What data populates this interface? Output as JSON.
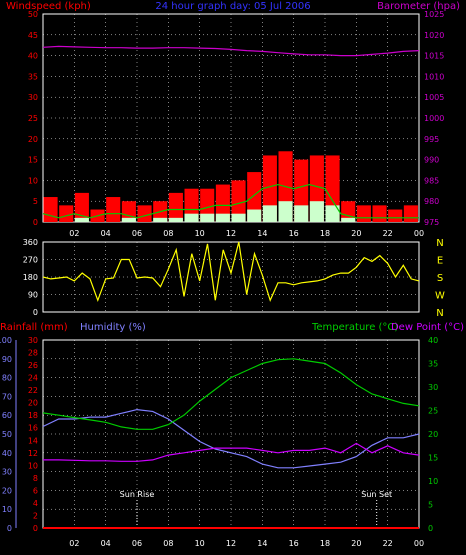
{
  "header": {
    "title": "24 hour graph day: 05 Jul 2006",
    "left_label": "Windspeed (kph)",
    "right_label": "Barometer (hpa)"
  },
  "colors": {
    "wind": "#ff0000",
    "gust_fill": "#ff0000",
    "wind_avg": "#00cc00",
    "wind_low": "#ccffcc",
    "barometer": "#cc00cc",
    "direction": "#ffff00",
    "temperature": "#00cc00",
    "dewpoint": "#cc00ff",
    "humidity": "#8080ff",
    "rainfall": "#ff0000",
    "title": "#3333ff",
    "axis_white": "#ffffff",
    "grid": "#ffffff"
  },
  "chart_data": [
    {
      "type": "bar",
      "name": "wind-barometer",
      "x_ticks": [
        "02",
        "04",
        "06",
        "08",
        "10",
        "12",
        "14",
        "16",
        "18",
        "20",
        "22",
        "00"
      ],
      "wind_ylim": [
        0,
        50
      ],
      "wind_ticks": [
        0,
        5,
        10,
        15,
        20,
        25,
        30,
        35,
        40,
        45,
        50
      ],
      "baro_ylim": [
        975,
        1025
      ],
      "baro_ticks": [
        975,
        980,
        985,
        990,
        995,
        1000,
        1005,
        1010,
        1015,
        1020,
        1025
      ],
      "hours": [
        0,
        1,
        2,
        3,
        4,
        5,
        6,
        7,
        8,
        9,
        10,
        11,
        12,
        13,
        14,
        15,
        16,
        17,
        18,
        19,
        20,
        21,
        22,
        23,
        24
      ],
      "wind_gust_kph": [
        6,
        4,
        7,
        3,
        6,
        5,
        4,
        5,
        7,
        8,
        8,
        9,
        10,
        12,
        16,
        17,
        15,
        16,
        16,
        5,
        4,
        4,
        3,
        4,
        3
      ],
      "wind_avg_kph": [
        2,
        1,
        2,
        1,
        2,
        2,
        1,
        2,
        3,
        3,
        3,
        4,
        4,
        5,
        8,
        9,
        8,
        9,
        8,
        2,
        1,
        1,
        1,
        1,
        1
      ],
      "wind_low_kph": [
        0,
        0,
        1,
        0,
        0,
        1,
        0,
        1,
        1,
        2,
        2,
        2,
        2,
        3,
        4,
        5,
        4,
        5,
        4,
        1,
        0,
        0,
        0,
        0,
        0
      ],
      "barometer_hpa": [
        1017,
        1017.2,
        1017.1,
        1017.0,
        1016.9,
        1016.9,
        1016.8,
        1016.8,
        1016.9,
        1016.9,
        1016.8,
        1016.7,
        1016.5,
        1016.2,
        1016.0,
        1015.7,
        1015.4,
        1015.2,
        1015.2,
        1015.0,
        1015.0,
        1015.3,
        1015.6,
        1016.0,
        1016.2
      ]
    },
    {
      "type": "line",
      "name": "wind-direction",
      "ylim": [
        0,
        360
      ],
      "y_ticks": [
        0,
        90,
        180,
        270,
        360
      ],
      "compass_labels": [
        "N",
        "W",
        "S",
        "E",
        "N"
      ],
      "hours": [
        0,
        0.5,
        1,
        1.5,
        2,
        2.5,
        3,
        3.5,
        4,
        4.5,
        5,
        5.5,
        6,
        6.5,
        7,
        7.5,
        8,
        8.5,
        9,
        9.5,
        10,
        10.5,
        11,
        11.5,
        12,
        12.5,
        13,
        13.5,
        14,
        14.5,
        15,
        15.5,
        16,
        16.5,
        17,
        17.5,
        18,
        18.5,
        19,
        19.5,
        20,
        20.5,
        21,
        21.5,
        22,
        22.5,
        23,
        23.5,
        24
      ],
      "direction_deg": [
        180,
        170,
        175,
        180,
        160,
        200,
        170,
        60,
        170,
        175,
        270,
        270,
        175,
        180,
        175,
        130,
        220,
        320,
        80,
        300,
        160,
        350,
        60,
        320,
        200,
        360,
        90,
        300,
        190,
        60,
        150,
        150,
        140,
        150,
        155,
        160,
        170,
        190,
        200,
        200,
        230,
        280,
        260,
        290,
        250,
        180,
        240,
        170,
        160
      ]
    },
    {
      "type": "line",
      "name": "temp-humidity-rain",
      "left_labels": [
        "Rainfall (mm)",
        "Humidity (%)"
      ],
      "right_labels": [
        "Temperature (°C)",
        "Dew Point (°C)"
      ],
      "humidity_ylim": [
        0,
        100
      ],
      "humidity_ticks": [
        0,
        10,
        20,
        30,
        40,
        50,
        60,
        70,
        80,
        90,
        100
      ],
      "rain_ylim": [
        0,
        30
      ],
      "rain_ticks": [
        0,
        2,
        4,
        6,
        8,
        10,
        12,
        14,
        16,
        18,
        20,
        22,
        24,
        26,
        28,
        30
      ],
      "temp_ylim": [
        0,
        40
      ],
      "temp_ticks": [
        0,
        5,
        10,
        15,
        20,
        25,
        30,
        35,
        40
      ],
      "annotations": [
        {
          "label": "Sun Rise",
          "hour": 6
        },
        {
          "label": "Sun Set",
          "hour": 21.3
        }
      ],
      "hours": [
        0,
        1,
        2,
        3,
        4,
        5,
        6,
        7,
        8,
        9,
        10,
        11,
        12,
        13,
        14,
        15,
        16,
        17,
        18,
        19,
        20,
        21,
        22,
        23,
        24
      ],
      "temperature_c": [
        24.5,
        24,
        23.5,
        23,
        22.5,
        21.5,
        21,
        21,
        22,
        24,
        27,
        29.5,
        32,
        33.5,
        35,
        35.8,
        36,
        35.5,
        35,
        33,
        30.5,
        28.5,
        27.5,
        26.5,
        26
      ],
      "dewpoint_c": [
        14.5,
        14.5,
        14.4,
        14.3,
        14.3,
        14.2,
        14.2,
        14.5,
        15.5,
        16,
        16.5,
        17,
        17,
        17,
        16.5,
        16,
        16.5,
        16.5,
        17,
        16,
        18,
        16,
        17.5,
        16,
        15.5
      ],
      "humidity_pct": [
        54,
        58,
        58,
        59,
        59,
        61,
        63,
        62,
        58,
        52,
        46,
        42,
        40,
        38,
        34,
        32,
        32,
        33,
        34,
        35,
        38,
        44,
        48,
        48,
        50
      ],
      "rainfall_mm": [
        0,
        0,
        0,
        0,
        0,
        0,
        0,
        0,
        0,
        0,
        0,
        0,
        0,
        0,
        0,
        0,
        0,
        0,
        0,
        0,
        0,
        0,
        0,
        0,
        0
      ]
    }
  ]
}
